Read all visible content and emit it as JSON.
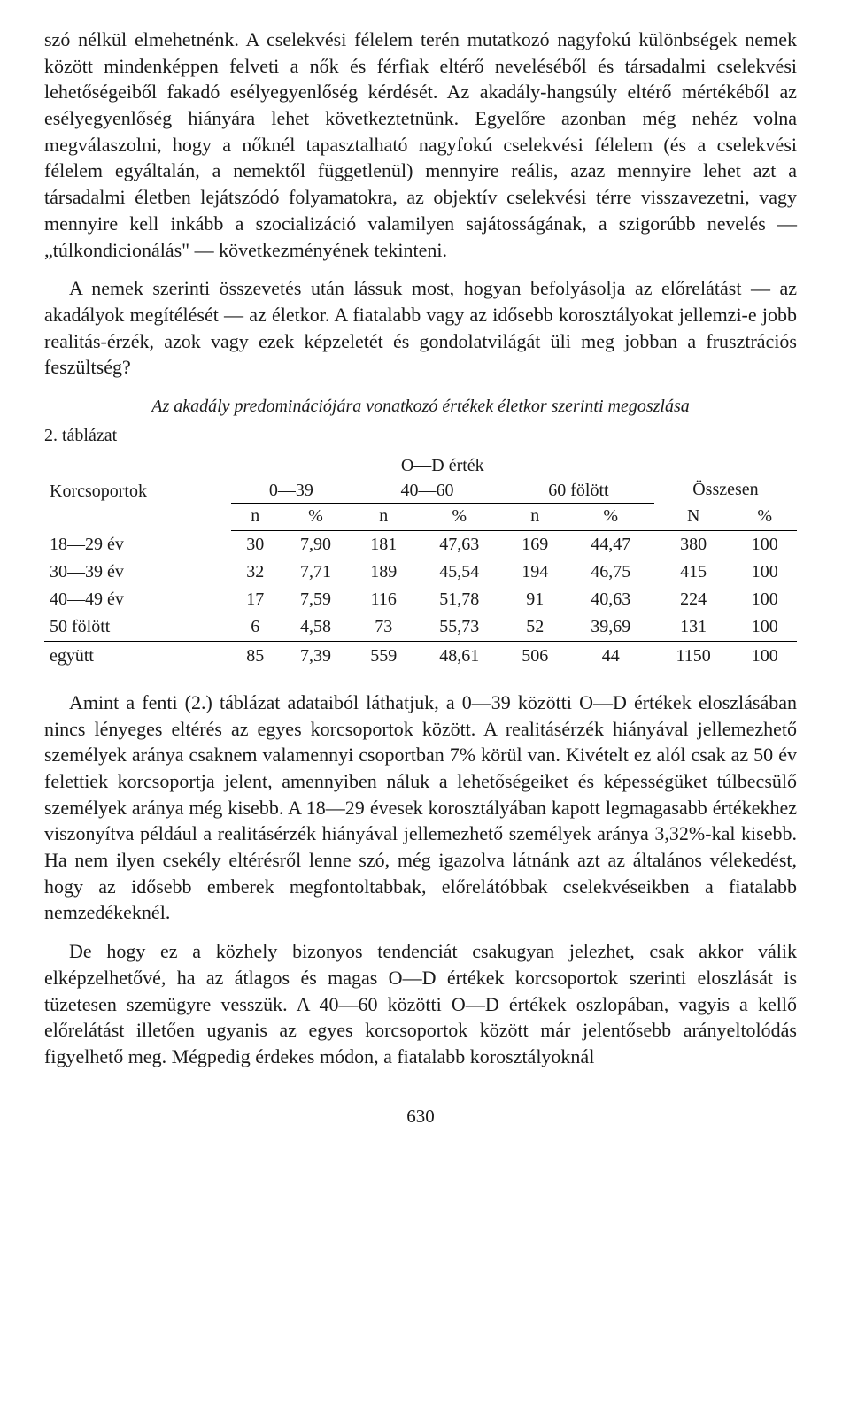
{
  "paragraphs": {
    "p1": "szó nélkül elmehetnénk. A cselekvési félelem terén mutatkozó nagyfokú különbségek nemek között mindenképpen felveti a nők és férfiak eltérő neveléséből és társadalmi cselekvési lehetőségeiből fakadó esélyegyenlőség kérdését. Az akadály-hangsúly eltérő mértékéből az esélyegyenlőség hiányára lehet következtetnünk. Egyelőre azonban még nehéz volna megválaszolni, hogy a nőknél tapasztalható nagyfokú cselekvési félelem (és a cselekvési félelem egyáltalán, a nemektől függetlenül) mennyire reális, azaz mennyire lehet azt a társadalmi életben lejátszódó folyamatokra, az objektív cselekvési térre visszavezetni, vagy mennyire kell inkább a szocializáció valamilyen sajátosságának, a szigorúbb nevelés — „túlkondicionálás\" — következményének tekinteni.",
    "p2": "A nemek szerinti összevetés után lássuk most, hogyan befolyásolja az előrelátást — az akadályok megítélését — az életkor. A fiatalabb vagy az idősebb korosztályokat jellemzi-e jobb realitás-érzék, azok vagy ezek képzeletét és gondolatvilágát üli meg jobban a frusztrációs feszültség?",
    "p3": "Amint a fenti (2.) táblázat adataiból láthatjuk, a 0—39 közötti O—D értékek eloszlásában nincs lényeges eltérés az egyes korcsoportok között. A realitásérzék hiányával jellemezhető személyek aránya csaknem valamennyi csoportban 7% körül van. Kivételt ez alól csak az 50 év felettiek korcsoportja jelent, amennyiben náluk a lehetőségeiket és képességüket túlbecsülő személyek aránya még kisebb. A 18—29 évesek korosztályában kapott legmagasabb értékekhez viszonyítva például a realitásérzék hiányával jellemezhető személyek aránya 3,32%-kal kisebb. Ha nem ilyen csekély eltérésről lenne szó, még igazolva látnánk azt az általános vélekedést, hogy az idősebb emberek megfontoltabbak, előrelátóbbak cselekvéseikben a fiatalabb nemzedékeknél.",
    "p4": "De hogy ez a közhely bizonyos tendenciát csakugyan jelezhet, csak akkor válik elképzelhetővé, ha az átlagos és magas O—D értékek korcsoportok szerinti eloszlását is tüzetesen szemügyre vesszük. A 40—60 közötti O—D értékek oszlopában, vagyis a kellő előrelátást illetően ugyanis az egyes korcsoportok között már jelentősebb arányeltolódás figyelhető meg. Mégpedig érdekes módon, a fiatalabb korosztályoknál"
  },
  "table": {
    "title": "Az akadály predominációjára vonatkozó értékek életkor szerinti megoszlása",
    "label": "2. táblázat",
    "header": {
      "rowlabel": "Korcsoportok",
      "od_ertek": "O—D érték",
      "ranges": [
        "0—39",
        "40—60",
        "60 fölött"
      ],
      "osszesen": "Összesen",
      "sub": [
        "n",
        "%",
        "n",
        "%",
        "n",
        "%",
        "N",
        "%"
      ]
    },
    "rows": [
      {
        "label": "18—29 év",
        "cells": [
          "30",
          "7,90",
          "181",
          "47,63",
          "169",
          "44,47",
          "380",
          "100"
        ]
      },
      {
        "label": "30—39 év",
        "cells": [
          "32",
          "7,71",
          "189",
          "45,54",
          "194",
          "46,75",
          "415",
          "100"
        ]
      },
      {
        "label": "40—49 év",
        "cells": [
          "17",
          "7,59",
          "116",
          "51,78",
          "91",
          "40,63",
          "224",
          "100"
        ]
      },
      {
        "label": "50 fölött",
        "cells": [
          "6",
          "4,58",
          "73",
          "55,73",
          "52",
          "39,69",
          "131",
          "100"
        ]
      },
      {
        "label": "együtt",
        "cells": [
          "85",
          "7,39",
          "559",
          "48,61",
          "506",
          "44",
          "1150",
          "100"
        ]
      }
    ]
  },
  "page_number": "630"
}
